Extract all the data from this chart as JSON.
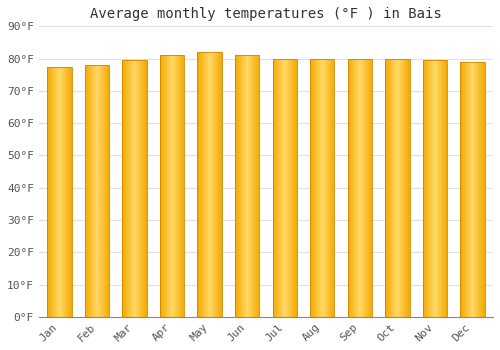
{
  "title": "Average monthly temperatures (°F ) in Bais",
  "months": [
    "Jan",
    "Feb",
    "Mar",
    "Apr",
    "May",
    "Jun",
    "Jul",
    "Aug",
    "Sep",
    "Oct",
    "Nov",
    "Dec"
  ],
  "values": [
    77.5,
    78.0,
    79.5,
    81.0,
    82.0,
    81.0,
    80.0,
    80.0,
    80.0,
    80.0,
    79.5,
    79.0
  ],
  "ylim": [
    0,
    90
  ],
  "yticks": [
    0,
    10,
    20,
    30,
    40,
    50,
    60,
    70,
    80,
    90
  ],
  "bar_color_center": "#FFD966",
  "bar_color_edge": "#F5A800",
  "background_color": "#FFFFFF",
  "grid_color": "#E0E0E0",
  "title_fontsize": 10,
  "tick_fontsize": 8,
  "font_family": "monospace"
}
